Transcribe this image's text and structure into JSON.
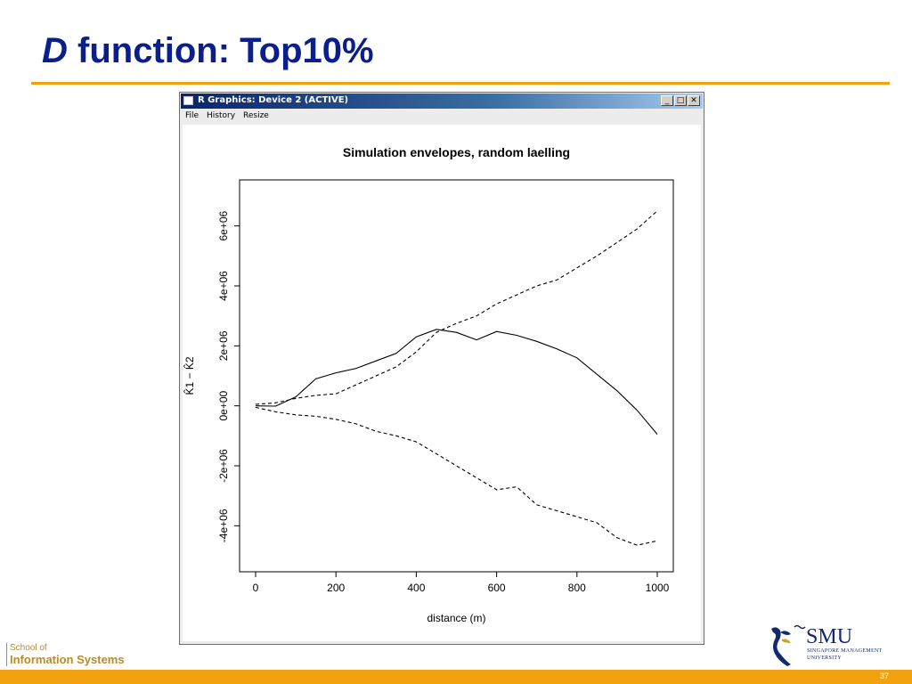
{
  "slide": {
    "title_italic": "D",
    "title_rest": " function: Top10%",
    "page_number": "37"
  },
  "window": {
    "title": "R Graphics: Device 2 (ACTIVE)",
    "menu": [
      "File",
      "History",
      "Resize"
    ],
    "minimize_label": "_",
    "maximize_label": "□",
    "close_label": "✕"
  },
  "footer": {
    "school_line1": "School of",
    "school_line2": "Information Systems",
    "brand": "SMU",
    "brand_sub1": "SINGAPORE MANAGEMENT",
    "brand_sub2": "UNIVERSITY"
  },
  "chart_data": {
    "type": "line",
    "title": "Simulation envelopes, random laelling",
    "xlabel": "distance (m)",
    "ylabel": "K̂1 − K̂2",
    "xlim": [
      0,
      1000
    ],
    "ylim": [
      -5000000,
      7000000
    ],
    "x_ticks": [
      0,
      200,
      400,
      600,
      800,
      1000
    ],
    "x_tick_labels": [
      "0",
      "200",
      "400",
      "600",
      "800",
      "1000"
    ],
    "y_ticks": [
      -4000000,
      -2000000,
      0,
      2000000,
      4000000,
      6000000
    ],
    "y_tick_labels": [
      "-4e+06",
      "-2e+06",
      "0e+00",
      "2e+06",
      "4e+06",
      "6e+06"
    ],
    "grid": false,
    "series": [
      {
        "style": "solid",
        "x": [
          0,
          50,
          100,
          150,
          200,
          250,
          300,
          350,
          400,
          450,
          500,
          550,
          600,
          650,
          700,
          750,
          800,
          850,
          900,
          950,
          1000
        ],
        "y": [
          0,
          -10000,
          300000,
          900000,
          1100000,
          1250000,
          1500000,
          1750000,
          2300000,
          2550000,
          2450000,
          2200000,
          2480000,
          2350000,
          2150000,
          1900000,
          1600000,
          1050000,
          500000,
          -150000,
          -950000
        ]
      },
      {
        "style": "dashed",
        "x": [
          0,
          50,
          100,
          150,
          200,
          250,
          300,
          350,
          400,
          450,
          500,
          550,
          600,
          650,
          700,
          750,
          800,
          850,
          900,
          950,
          1000
        ],
        "y": [
          50000,
          100000,
          250000,
          350000,
          400000,
          700000,
          1000000,
          1300000,
          1800000,
          2450000,
          2750000,
          3000000,
          3400000,
          3700000,
          4000000,
          4200000,
          4600000,
          5000000,
          5450000,
          5900000,
          6500000
        ]
      },
      {
        "style": "dashed",
        "x": [
          0,
          50,
          100,
          150,
          200,
          250,
          300,
          350,
          400,
          450,
          500,
          550,
          600,
          650,
          700,
          750,
          800,
          850,
          900,
          950,
          1000
        ],
        "y": [
          -50000,
          -200000,
          -300000,
          -350000,
          -450000,
          -600000,
          -850000,
          -1000000,
          -1200000,
          -1600000,
          -2000000,
          -2400000,
          -2800000,
          -2700000,
          -3300000,
          -3500000,
          -3700000,
          -3900000,
          -4400000,
          -4650000,
          -4500000
        ]
      }
    ]
  }
}
